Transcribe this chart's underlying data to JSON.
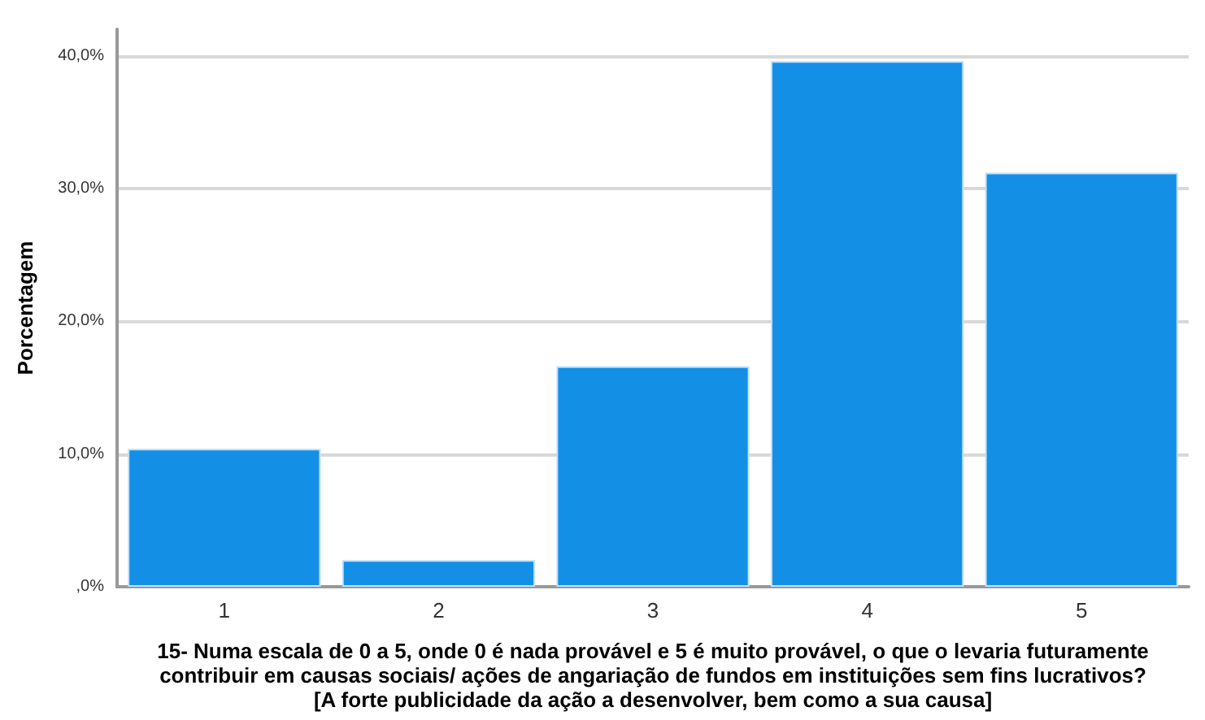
{
  "chart_data": {
    "type": "bar",
    "categories": [
      "1",
      "2",
      "3",
      "4",
      "5"
    ],
    "values": [
      10.4,
      2.0,
      16.6,
      39.6,
      31.2
    ],
    "color": "#1390e6",
    "ylabel": "Porcentagem",
    "xlabel": "15- Numa escala de 0 a 5, onde 0 é nada provável e 5 é muito provável, o que o levaria futuramente\ncontribuir em causas sociais/ ações de angariação de fundos em instituições sem fins lucrativos?\n[A forte publicidade da ação a desenvolver, bem como a sua causa]",
    "ylim": [
      0,
      42
    ],
    "yticks": [
      {
        "value": 0,
        "label": ",0%"
      },
      {
        "value": 10,
        "label": "10,0%"
      },
      {
        "value": 20,
        "label": "20,0%"
      },
      {
        "value": 30,
        "label": "30,0%"
      },
      {
        "value": 40,
        "label": "40,0%"
      }
    ],
    "grid": "y"
  }
}
